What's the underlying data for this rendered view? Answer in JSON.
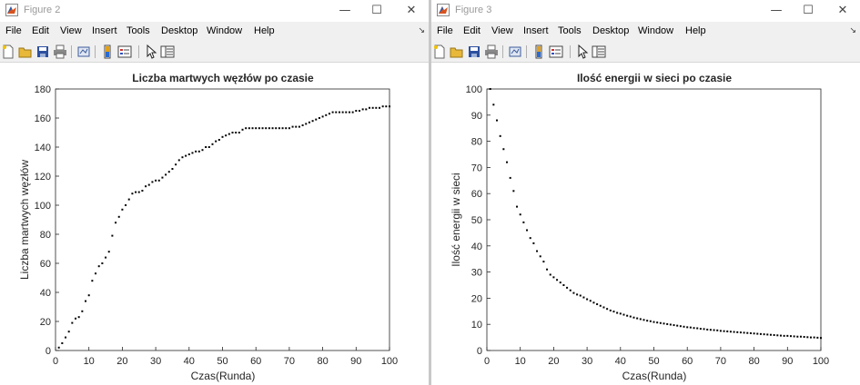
{
  "windows": [
    {
      "title": "Figure 2",
      "menu": [
        "File",
        "Edit",
        "View",
        "Insert",
        "Tools",
        "Desktop",
        "Window",
        "Help"
      ],
      "controls": {
        "minimize": "—",
        "maximize": "☐",
        "close": "✕"
      },
      "toolbar_icons": [
        "new-figure-icon",
        "open-file-icon",
        "save-icon",
        "print-icon",
        "link-plot-icon",
        "insert-colorbar-icon",
        "insert-legend-icon",
        "pointer-icon",
        "property-editor-icon"
      ]
    },
    {
      "title": "Figure 3",
      "menu": [
        "File",
        "Edit",
        "View",
        "Insert",
        "Tools",
        "Desktop",
        "Window",
        "Help"
      ],
      "controls": {
        "minimize": "—",
        "maximize": "☐",
        "close": "✕"
      },
      "toolbar_icons": [
        "new-figure-icon",
        "open-file-icon",
        "save-icon",
        "print-icon",
        "link-plot-icon",
        "insert-colorbar-icon",
        "insert-legend-icon",
        "pointer-icon",
        "property-editor-icon"
      ]
    }
  ],
  "chart_data": [
    {
      "type": "scatter",
      "title": "Liczba martwych węzłów po czasie",
      "xlabel": "Czas(Runda)",
      "ylabel": "Liczba martwych węzłów",
      "xlim": [
        0,
        100
      ],
      "ylim": [
        0,
        180
      ],
      "xticks": [
        0,
        10,
        20,
        30,
        40,
        50,
        60,
        70,
        80,
        90,
        100
      ],
      "yticks": [
        0,
        20,
        40,
        60,
        80,
        100,
        120,
        140,
        160,
        180
      ],
      "grid": false,
      "marker_color": "#000000",
      "x": [
        1,
        2,
        3,
        4,
        5,
        6,
        7,
        8,
        9,
        10,
        11,
        12,
        13,
        14,
        15,
        16,
        17,
        18,
        19,
        20,
        21,
        22,
        23,
        24,
        25,
        26,
        27,
        28,
        29,
        30,
        31,
        32,
        33,
        34,
        35,
        36,
        37,
        38,
        39,
        40,
        41,
        42,
        43,
        44,
        45,
        46,
        47,
        48,
        49,
        50,
        51,
        52,
        53,
        54,
        55,
        56,
        57,
        58,
        59,
        60,
        61,
        62,
        63,
        64,
        65,
        66,
        67,
        68,
        69,
        70,
        71,
        72,
        73,
        74,
        75,
        76,
        77,
        78,
        79,
        80,
        81,
        82,
        83,
        84,
        85,
        86,
        87,
        88,
        89,
        90,
        91,
        92,
        93,
        94,
        95,
        96,
        97,
        98,
        99,
        100
      ],
      "y": [
        2,
        5,
        9,
        13,
        19,
        22,
        23,
        27,
        34,
        38,
        48,
        53,
        58,
        60,
        64,
        68,
        79,
        88,
        92,
        97,
        100,
        104,
        108,
        109,
        109,
        110,
        113,
        114,
        116,
        117,
        117,
        119,
        121,
        123,
        125,
        128,
        131,
        133,
        134,
        135,
        136,
        137,
        137,
        138,
        140,
        140,
        142,
        144,
        145,
        147,
        148,
        149,
        150,
        150,
        150,
        152,
        153,
        153,
        153,
        153,
        153,
        153,
        153,
        153,
        153,
        153,
        153,
        153,
        153,
        153,
        154,
        154,
        154,
        155,
        156,
        157,
        158,
        159,
        160,
        161,
        162,
        163,
        164,
        164,
        164,
        164,
        164,
        164,
        164,
        165,
        165,
        166,
        166,
        167,
        167,
        167,
        167,
        168,
        168,
        168
      ]
    },
    {
      "type": "scatter",
      "title": "Ilość energii w sieci po czasie",
      "xlabel": "Czas(Runda)",
      "ylabel": "Ilość energii w sieci",
      "xlim": [
        0,
        100
      ],
      "ylim": [
        0,
        100
      ],
      "xticks": [
        0,
        10,
        20,
        30,
        40,
        50,
        60,
        70,
        80,
        90,
        100
      ],
      "yticks": [
        0,
        10,
        20,
        30,
        40,
        50,
        60,
        70,
        80,
        90,
        100
      ],
      "grid": false,
      "marker_color": "#000000",
      "x": [
        1,
        2,
        3,
        4,
        5,
        6,
        7,
        8,
        9,
        10,
        11,
        12,
        13,
        14,
        15,
        16,
        17,
        18,
        19,
        20,
        21,
        22,
        23,
        24,
        25,
        26,
        27,
        28,
        29,
        30,
        31,
        32,
        33,
        34,
        35,
        36,
        37,
        38,
        39,
        40,
        41,
        42,
        43,
        44,
        45,
        46,
        47,
        48,
        49,
        50,
        51,
        52,
        53,
        54,
        55,
        56,
        57,
        58,
        59,
        60,
        61,
        62,
        63,
        64,
        65,
        66,
        67,
        68,
        69,
        70,
        71,
        72,
        73,
        74,
        75,
        76,
        77,
        78,
        79,
        80,
        81,
        82,
        83,
        84,
        85,
        86,
        87,
        88,
        89,
        90,
        91,
        92,
        93,
        94,
        95,
        96,
        97,
        98,
        99,
        100
      ],
      "y": [
        100,
        94,
        88,
        82,
        77,
        72,
        66,
        61,
        55,
        52,
        49,
        46,
        43,
        41,
        38,
        36,
        34,
        31,
        29,
        28,
        27,
        26,
        25,
        24,
        23,
        22,
        21.4,
        21,
        20.3,
        19.6,
        19,
        18.3,
        17.7,
        17.1,
        16.5,
        15.9,
        15.3,
        14.9,
        14.4,
        14.1,
        13.7,
        13.3,
        13,
        12.6,
        12.3,
        12,
        11.7,
        11.4,
        11.2,
        10.9,
        10.7,
        10.5,
        10.3,
        10.1,
        9.9,
        9.7,
        9.5,
        9.3,
        9.1,
        8.9,
        8.8,
        8.6,
        8.5,
        8.3,
        8.2,
        8,
        7.9,
        7.8,
        7.7,
        7.5,
        7.4,
        7.3,
        7.2,
        7.1,
        7,
        6.9,
        6.8,
        6.7,
        6.6,
        6.5,
        6.4,
        6.3,
        6.2,
        6.1,
        6,
        5.9,
        5.8,
        5.7,
        5.6,
        5.6,
        5.5,
        5.4,
        5.3,
        5.3,
        5.2,
        5.1,
        5,
        5,
        4.9,
        4.8
      ]
    }
  ]
}
